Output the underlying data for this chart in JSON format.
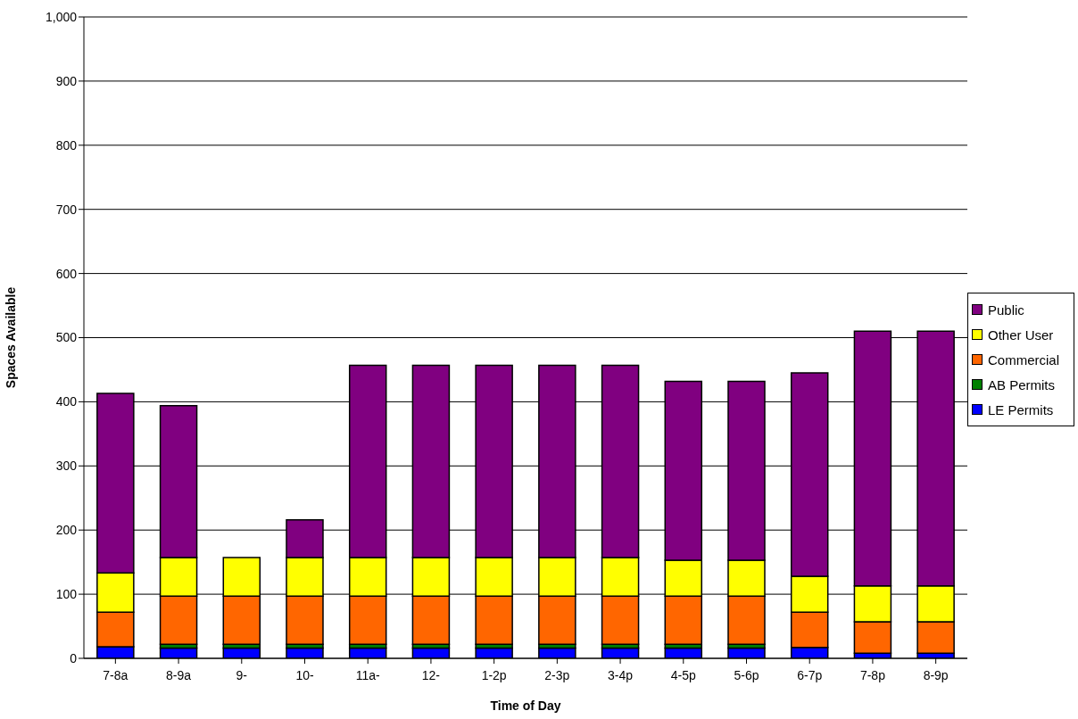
{
  "chart_data": {
    "type": "bar",
    "stacked": true,
    "xlabel": "Time of Day",
    "ylabel": "Spaces Available",
    "categories": [
      "7-8a",
      "8-9a",
      "9-",
      "10-",
      "11a-",
      "12-",
      "1-2p",
      "2-3p",
      "3-4p",
      "4-5p",
      "5-6p",
      "6-7p",
      "7-8p",
      "8-9p"
    ],
    "series": [
      {
        "name": "LE Permits",
        "color": "#0000ff",
        "values": [
          18,
          16,
          16,
          16,
          16,
          16,
          16,
          16,
          16,
          16,
          16,
          17,
          8,
          8
        ]
      },
      {
        "name": "AB Permits",
        "color": "#008000",
        "values": [
          0,
          6,
          6,
          6,
          6,
          6,
          6,
          6,
          6,
          6,
          6,
          0,
          0,
          0
        ]
      },
      {
        "name": "Commercial",
        "color": "#ff6600",
        "values": [
          54,
          75,
          75,
          75,
          75,
          75,
          75,
          75,
          75,
          75,
          75,
          55,
          49,
          49
        ]
      },
      {
        "name": "Other User",
        "color": "#ffff00",
        "values": [
          61,
          60,
          60,
          60,
          60,
          60,
          60,
          60,
          60,
          56,
          56,
          56,
          56,
          56
        ]
      },
      {
        "name": "Public",
        "color": "#800080",
        "values": [
          280,
          237,
          0,
          59,
          300,
          300,
          300,
          300,
          300,
          279,
          279,
          317,
          397,
          397
        ]
      }
    ],
    "ylim": [
      0,
      1000
    ],
    "yticks": [
      0,
      100,
      200,
      300,
      400,
      500,
      600,
      700,
      800,
      900,
      {
        "value": 1000,
        "label": "1,000"
      }
    ],
    "grid": "y",
    "legend": "right"
  }
}
